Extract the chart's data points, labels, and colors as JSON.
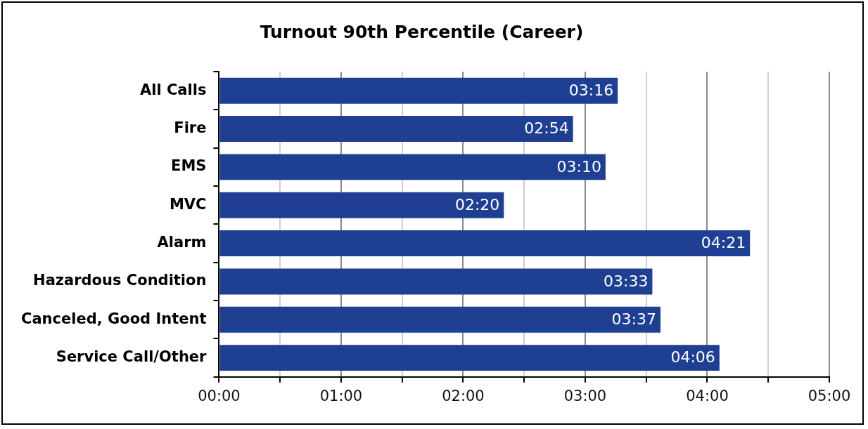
{
  "chart_data": {
    "type": "bar",
    "orientation": "horizontal",
    "title": "Turnout 90th Percentile (Career)",
    "categories": [
      "All Calls",
      "Fire",
      "EMS",
      "MVC",
      "Alarm",
      "Hazardous Condition",
      "Canceled, Good Intent",
      "Service Call/Other"
    ],
    "values": [
      196,
      174,
      190,
      140,
      261,
      213,
      217,
      246
    ],
    "value_labels": [
      "03:16",
      "02:54",
      "03:10",
      "02:20",
      "04:21",
      "03:33",
      "03:37",
      "04:06"
    ],
    "color": "#1f3f93",
    "xlim": [
      0,
      300
    ],
    "xticks": [
      {
        "value": 0,
        "label": "00:00"
      },
      {
        "value": 30,
        "label": null
      },
      {
        "value": 60,
        "label": "01:00"
      },
      {
        "value": 90,
        "label": null
      },
      {
        "value": 120,
        "label": "02:00"
      },
      {
        "value": 150,
        "label": null
      },
      {
        "value": 180,
        "label": "03:00"
      },
      {
        "value": 210,
        "label": null
      },
      {
        "value": 240,
        "label": "04:00"
      },
      {
        "value": 270,
        "label": null
      },
      {
        "value": 300,
        "label": "05:00"
      }
    ],
    "grid": "x",
    "legend": false
  }
}
